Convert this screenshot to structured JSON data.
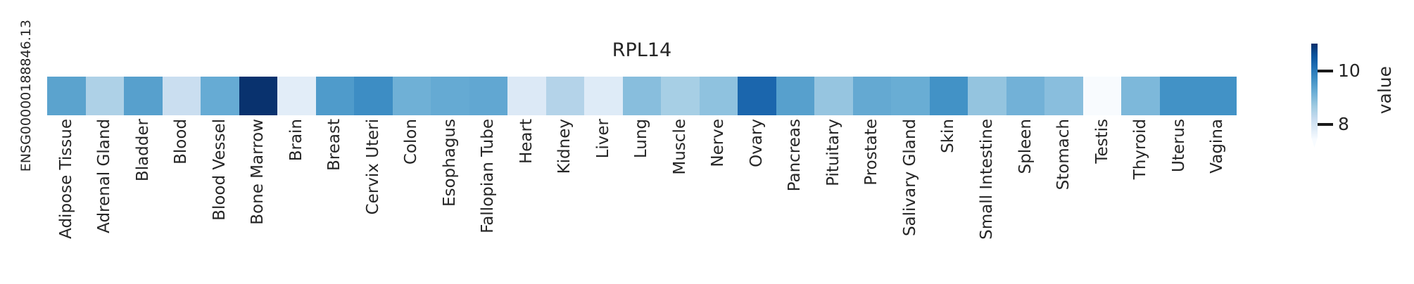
{
  "title": "RPL14",
  "gene_id": "ENSG00000188846.13",
  "colorbar": {
    "label": "value",
    "ticks": [
      {
        "label": "10"
      },
      {
        "label": "8"
      }
    ],
    "colormap": "Blues",
    "extend": "min"
  },
  "chart_data": {
    "type": "heatmap",
    "title": "RPL14",
    "rows": [
      "ENSG00000188846.13"
    ],
    "categories": [
      "Adipose Tissue",
      "Adrenal Gland",
      "Bladder",
      "Blood",
      "Blood Vessel",
      "Bone Marrow",
      "Brain",
      "Breast",
      "Cervix Uteri",
      "Colon",
      "Esophagus",
      "Fallopian Tube",
      "Heart",
      "Kidney",
      "Liver",
      "Lung",
      "Muscle",
      "Nerve",
      "Ovary",
      "Pancreas",
      "Pituitary",
      "Prostate",
      "Salivary Gland",
      "Skin",
      "Small Intestine",
      "Spleen",
      "Stomach",
      "Testis",
      "Thyroid",
      "Uterus",
      "Vagina"
    ],
    "values": [
      9.5,
      8.6,
      9.5,
      8.2,
      9.3,
      11.5,
      7.8,
      9.6,
      9.8,
      9.2,
      9.3,
      9.4,
      7.9,
      8.5,
      7.9,
      8.9,
      8.7,
      8.8,
      10.4,
      9.5,
      8.8,
      9.3,
      9.2,
      9.7,
      8.8,
      9.1,
      8.9,
      7.1,
      9.0,
      9.7,
      9.7
    ],
    "cell_colors": [
      "#5ba3ce",
      "#aed1e7",
      "#57a0cd",
      "#cadef0",
      "#66abd4",
      "#09326e",
      "#e2edf8",
      "#4f9bcb",
      "#3d8dc4",
      "#6fb0d6",
      "#65aad3",
      "#61a7d2",
      "#dce9f6",
      "#b4d3e9",
      "#deebf7",
      "#88bedd",
      "#a7cfe5",
      "#8fc2df",
      "#1b66ad",
      "#57a0cd",
      "#96c5e0",
      "#64a9d2",
      "#69add4",
      "#4292c6",
      "#94c4df",
      "#72b1d7",
      "#89bedd",
      "#f8fbfe",
      "#7db8da",
      "#4292c6",
      "#4292c6"
    ],
    "ylabel": "",
    "xlabel": "",
    "colorbar_label": "value",
    "colorbar_ticks": [
      10,
      8
    ],
    "colormap": "Blues",
    "value_range_shown": [
      8,
      10
    ],
    "legend_position": "right",
    "grid": false
  }
}
